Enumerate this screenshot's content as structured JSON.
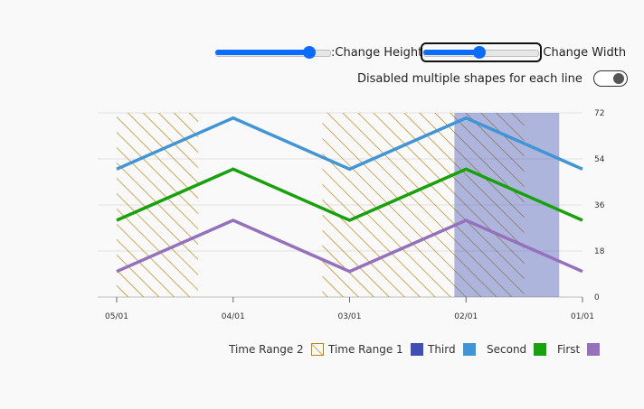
{
  "controls": {
    "height_label": ":Change Height",
    "height_value": 0.85,
    "width_label": ":Change Width",
    "width_value": 0.48,
    "shapes_label": "Disabled multiple shapes for each line",
    "shapes_enabled": true
  },
  "colors": {
    "third": "#3f95d6",
    "second": "#17a10a",
    "first": "#9470bd",
    "range1": "#3f4fb5",
    "range2": "#b8860b"
  },
  "chart_data": {
    "type": "line",
    "x": [
      "05/01",
      "04/01",
      "03/01",
      "02/01",
      "01/01"
    ],
    "y_axis_position": "right",
    "ylim": [
      0,
      72
    ],
    "y_ticks": [
      0,
      18,
      36,
      54,
      72
    ],
    "grid": true,
    "series": [
      {
        "name": "Third",
        "values": [
          50,
          70,
          50,
          70,
          50
        ]
      },
      {
        "name": "Second",
        "values": [
          30,
          50,
          30,
          50,
          30
        ]
      },
      {
        "name": "First",
        "values": [
          10,
          30,
          10,
          30,
          10
        ]
      }
    ],
    "ranges": [
      {
        "name": "Time Range 2",
        "pattern": "hatched",
        "spans": [
          [
            "05/01",
            "04/10"
          ],
          [
            "03/08",
            "01/16"
          ]
        ]
      },
      {
        "name": "Time Range 1",
        "pattern": "solid",
        "spans": [
          [
            "02/04",
            "01/07"
          ]
        ]
      }
    ],
    "legend": {
      "placement": "bottom-right",
      "items": [
        "Time Range 2",
        "Time Range 1",
        "Third",
        "Second",
        "First"
      ]
    }
  }
}
